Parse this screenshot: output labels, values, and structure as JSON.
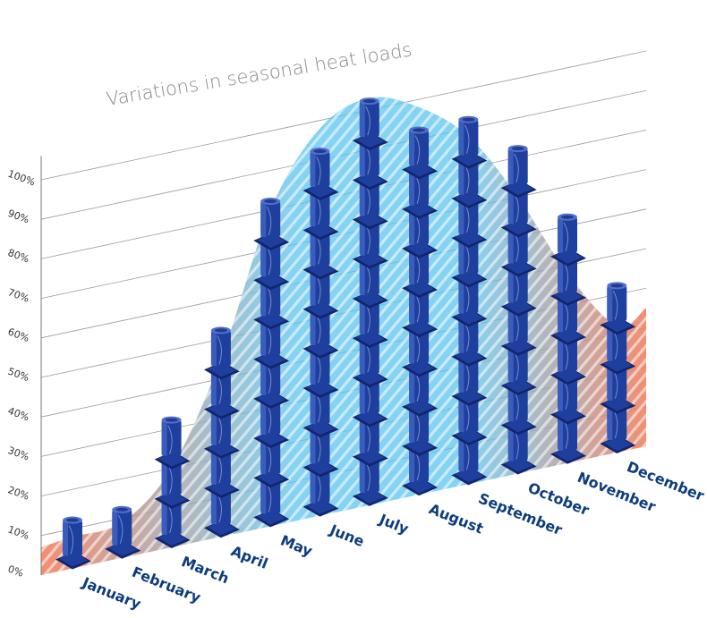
{
  "chart_data": {
    "type": "bar",
    "title": "Variations in seasonal heat loads",
    "xlabel": "",
    "ylabel": "",
    "ylim": [
      0,
      100
    ],
    "y_ticks": [
      "0%",
      "10%",
      "20%",
      "30%",
      "40%",
      "50%",
      "60%",
      "70%",
      "80%",
      "90%",
      "100%"
    ],
    "categories": [
      "January",
      "February",
      "March",
      "April",
      "May",
      "June",
      "July",
      "August",
      "September",
      "October",
      "November",
      "December"
    ],
    "values": [
      10,
      10,
      30,
      50,
      80,
      90,
      100,
      90,
      90,
      80,
      60,
      40
    ],
    "marker_step": 10,
    "grid": true,
    "legend": "none",
    "colors": {
      "curve_warm": "#f07a58",
      "curve_cool": "#5cc4ee",
      "marker": "#1f3f9e",
      "marker_dark": "#12256e",
      "marker_light": "#4d6fd0",
      "axis_text": "#333333",
      "month_text": "#0d3c7d",
      "title_text": "#888888",
      "grid": "#9a9a9a"
    }
  }
}
